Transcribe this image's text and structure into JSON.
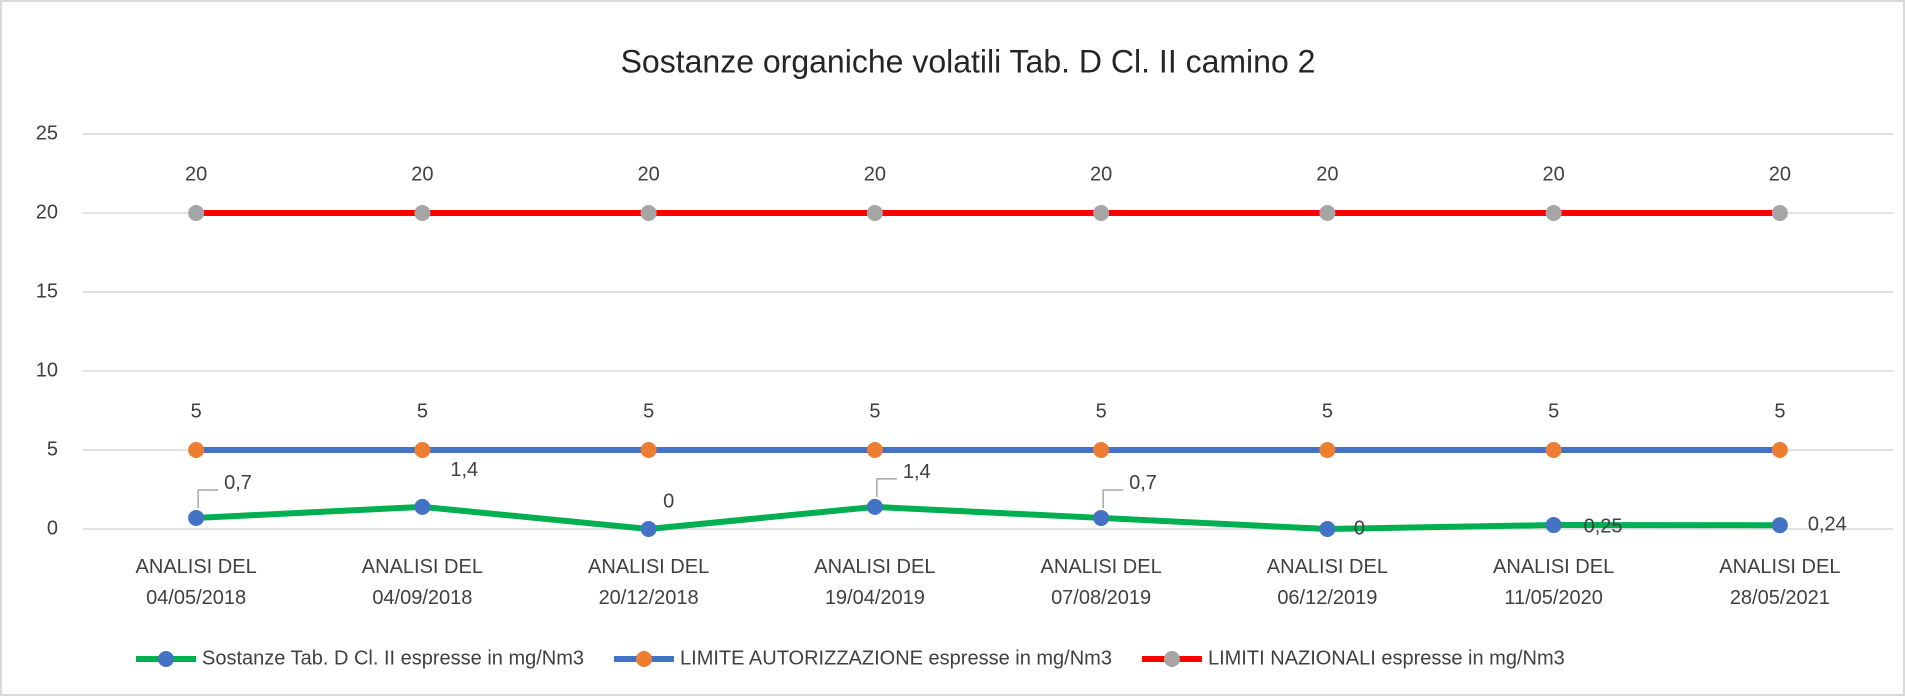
{
  "chart_data": {
    "type": "line",
    "title": "Sostanze organiche volatili  Tab.  D Cl. II  camino 2",
    "categories": [
      "ANALISI DEL\n04/05/2018",
      "ANALISI DEL\n04/09/2018",
      "ANALISI DEL\n20/12/2018",
      "ANALISI DEL\n19/04/2019",
      "ANALISI DEL\n07/08/2019",
      "ANALISI DEL\n06/12/2019",
      "ANALISI DEL\n11/05/2020",
      "ANALISI DEL\n28/05/2021"
    ],
    "series": [
      {
        "name": "Sostanze  Tab.  D Cl. II espresse in mg/Nm3",
        "color": "#00b050",
        "marker_color": "#4472c4",
        "values": [
          0.7,
          1.4,
          0,
          1.4,
          0.7,
          0,
          0.25,
          0.24
        ],
        "value_labels": [
          "0,7",
          "1,4",
          "0",
          "1,4",
          "0,7",
          "0",
          "0,25",
          "0,24"
        ]
      },
      {
        "name": "LIMITE AUTORIZZAZIONE espresse in mg/Nm3",
        "color": "#4472c4",
        "marker_color": "#ed7d31",
        "values": [
          5,
          5,
          5,
          5,
          5,
          5,
          5,
          5
        ]
      },
      {
        "name": "LIMITI NAZIONALI espresse in mg/Nm3",
        "color": "#ff0000",
        "marker_color": "#a5a5a5",
        "values": [
          20,
          20,
          20,
          20,
          20,
          20,
          20,
          20
        ]
      }
    ],
    "ylim": [
      0,
      25
    ],
    "yticks": [
      0,
      5,
      10,
      15,
      20,
      25
    ],
    "grid": true,
    "legend": "bottom"
  }
}
